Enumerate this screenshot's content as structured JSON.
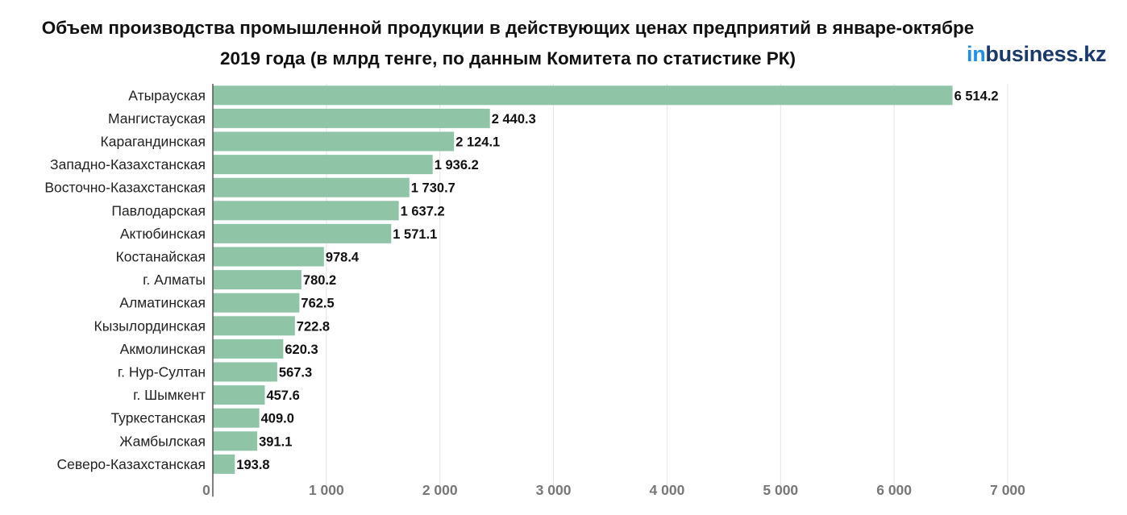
{
  "title": "Объем производства промышленной продукции в действующих ценах предприятий в январе-октябре 2019 года (в млрд тенге, по данным Комитета по статистике РК)",
  "logo": {
    "prefix": "in",
    "rest": "business.kz"
  },
  "chart_data": {
    "type": "bar",
    "orientation": "horizontal",
    "title": "Объем производства промышленной продукции в действующих ценах предприятий в январе-октябре 2019 года (в млрд тенге, по данным Комитета по статистике РК)",
    "categories": [
      "Атырауская",
      "Мангистауская",
      "Карагандинская",
      "Западно-Казахстанская",
      "Восточно-Казахстанская",
      "Павлодарская",
      "Актюбинская",
      "Костанайская",
      "г. Алматы",
      "Алматинская",
      "Кызылординская",
      "Акмолинская",
      "г. Нур-Султан",
      "г. Шымкент",
      "Туркестанская",
      "Жамбылская",
      "Северо-Казахстанская"
    ],
    "values": [
      6514.2,
      2440.3,
      2124.1,
      1936.2,
      1730.7,
      1637.2,
      1571.1,
      978.4,
      780.2,
      762.5,
      722.8,
      620.3,
      567.3,
      457.6,
      409.0,
      391.1,
      193.8
    ],
    "value_labels": [
      "6 514.2",
      "2 440.3",
      "2 124.1",
      "1 936.2",
      "1 730.7",
      "1 637.2",
      "1 571.1",
      "978.4",
      "780.2",
      "762.5",
      "722.8",
      "620.3",
      "567.3",
      "457.6",
      "409.0",
      "391.1",
      "193.8"
    ],
    "xlim": [
      0,
      7000
    ],
    "xticks": [
      0,
      1000,
      2000,
      3000,
      4000,
      5000,
      6000,
      7000
    ],
    "xtick_labels": [
      "0",
      "1 000",
      "2 000",
      "3 000",
      "4 000",
      "5 000",
      "6 000",
      "7 000"
    ],
    "grid": true,
    "legend": "none",
    "bar_color": "#8fc4a7",
    "grid_color": "#e3e3e3",
    "axis_color": "#555555",
    "tick_label_color": "#777777"
  }
}
